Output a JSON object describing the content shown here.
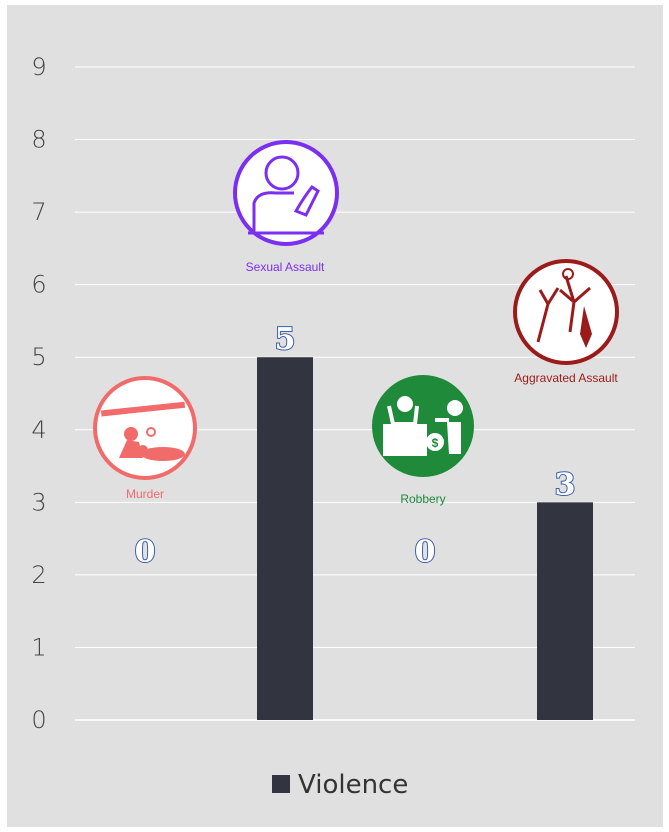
{
  "chart_data": {
    "type": "bar",
    "categories": [
      "Murder",
      "Sexual Assault",
      "Robbery",
      "Aggravated Assault"
    ],
    "series": [
      {
        "name": "Violence",
        "values": [
          0,
          5,
          0,
          3
        ]
      }
    ],
    "data_labels": [
      "0",
      "5",
      "0",
      "3"
    ],
    "ylim": [
      0,
      9
    ],
    "yticks": [
      "0",
      "1",
      "2",
      "3",
      "4",
      "5",
      "6",
      "7",
      "8",
      "9"
    ],
    "grid": true,
    "legend_placement": "bottom",
    "colors": {
      "background": "#e0e0e0",
      "bar": "#32353f",
      "gridline": "#ffffff",
      "data_label_outline": "#3b5fa8",
      "murder": "#f26b6b",
      "sexual_assault": "#7b2ff0",
      "robbery": "#1e8a3a",
      "aggravated_assault": "#9b1b1b"
    },
    "icons": [
      {
        "category": "Murder",
        "label": "Murder",
        "icon": "crime-scene-icon"
      },
      {
        "category": "Sexual Assault",
        "label": "Sexual Assault",
        "icon": "sexual-assault-icon"
      },
      {
        "category": "Robbery",
        "label": "Robbery",
        "icon": "robbery-icon"
      },
      {
        "category": "Aggravated Assault",
        "label": "Aggravated Assault",
        "icon": "aggravated-assault-icon"
      }
    ]
  }
}
